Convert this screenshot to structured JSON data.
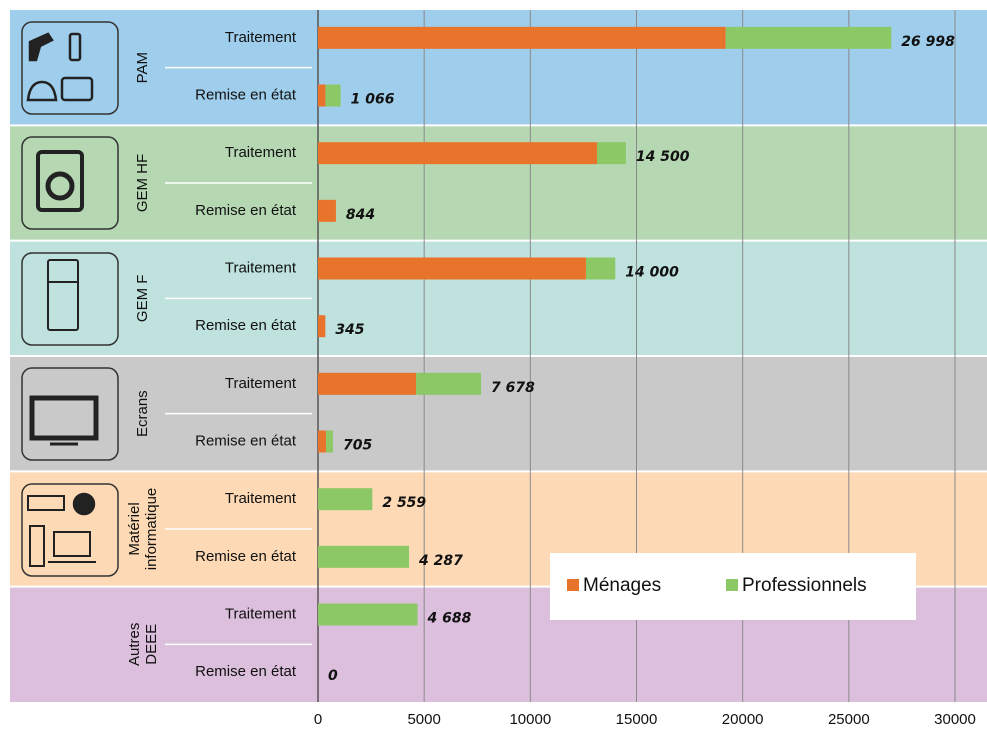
{
  "chart_data": {
    "type": "bar",
    "orientation": "horizontal",
    "stacked": true,
    "groups": [
      [
        "PAM"
      ],
      [
        "GEM HF"
      ],
      [
        "GEM F"
      ],
      [
        "Ecrans"
      ],
      [
        "Matériel",
        "informatique"
      ],
      [
        "Autres",
        "DEEE"
      ]
    ],
    "group_colors": [
      "#9fcdec",
      "#b5d8b3",
      "#bfe2de",
      "#c9c9c9",
      "#fddab5",
      "#dbbfdc"
    ],
    "categories": [
      "Traitement",
      "Remise en état",
      "Traitement",
      "Remise en état",
      "Traitement",
      "Remise en état",
      "Traitement",
      "Remise en état",
      "Traitement",
      "Remise en état",
      "Traitement",
      "Remise en état"
    ],
    "series": [
      {
        "name": "Ménages",
        "color": "#e8732a",
        "values": [
          19200,
          350,
          13140,
          844,
          12620,
          345,
          4620,
          380,
          0,
          0,
          0,
          0
        ]
      },
      {
        "name": "Professionnels",
        "color": "#8cc866",
        "values": [
          7798,
          716,
          1360,
          0,
          1380,
          0,
          3058,
          325,
          2559,
          4287,
          4688,
          0
        ]
      }
    ],
    "totals": [
      26998,
      1066,
      14500,
      844,
      14000,
      345,
      7678,
      705,
      2559,
      4287,
      4688,
      0
    ],
    "total_labels": [
      "26 998",
      "1 066",
      "14 500",
      "844",
      "14 000",
      "345",
      "7 678",
      "705",
      "2 559",
      "4 287",
      "4 688",
      "0"
    ],
    "xlim": [
      0,
      30000
    ],
    "xticks": [
      0,
      5000,
      10000,
      15000,
      20000,
      25000,
      30000
    ],
    "grid": true,
    "legend": "bottom-right"
  }
}
